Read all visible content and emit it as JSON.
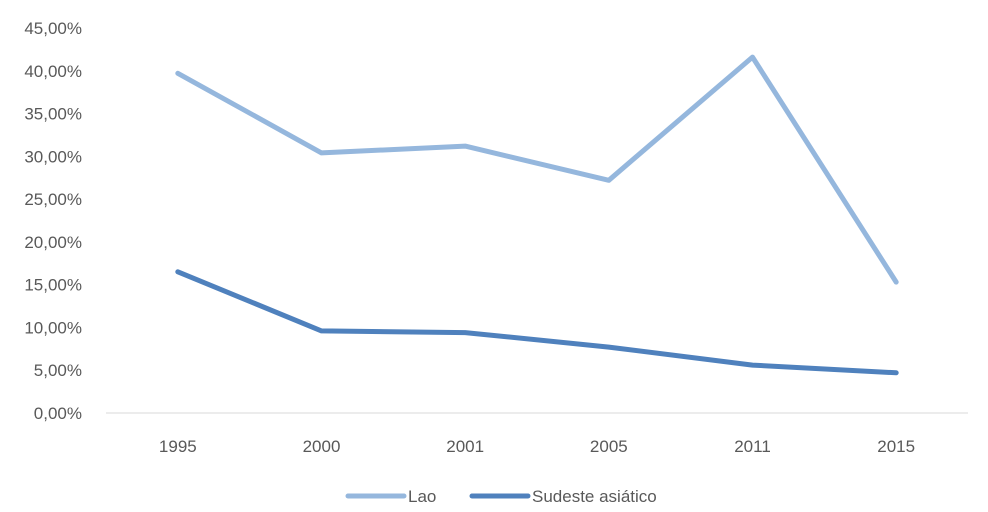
{
  "chart_data": {
    "type": "line",
    "categories": [
      "1995",
      "2000",
      "2001",
      "2005",
      "2011",
      "2015"
    ],
    "series": [
      {
        "name": "Lao",
        "values": [
          39.7,
          30.4,
          31.2,
          27.2,
          41.6,
          15.3
        ],
        "color": "#95B7DD"
      },
      {
        "name": "Sudeste asiático",
        "values": [
          16.5,
          9.6,
          9.4,
          7.7,
          5.6,
          4.7
        ],
        "color": "#4F81BD"
      }
    ],
    "ylim": [
      0,
      45
    ],
    "yticks": [
      "0,00%",
      "5,00%",
      "10,00%",
      "15,00%",
      "20,00%",
      "25,00%",
      "30,00%",
      "35,00%",
      "40,00%",
      "45,00%"
    ],
    "grid": false,
    "legend_position": "bottom"
  }
}
